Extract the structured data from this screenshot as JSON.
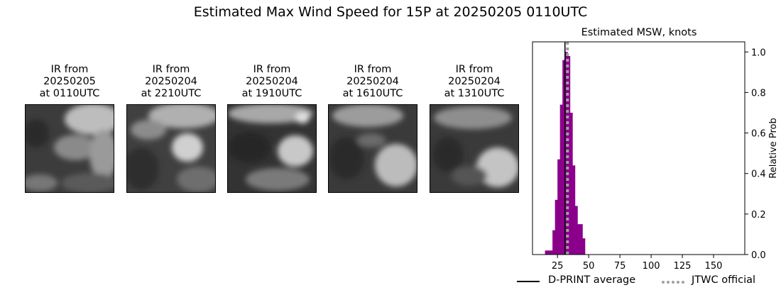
{
  "suptitle": "Estimated Max Wind Speed for 15P at 20250205 0110UTC",
  "panels": [
    {
      "line1": "IR from",
      "line2": "20250205",
      "line3": "at 0110UTC"
    },
    {
      "line1": "IR from",
      "line2": "20250204",
      "line3": "at 2210UTC"
    },
    {
      "line1": "IR from",
      "line2": "20250204",
      "line3": "at 1910UTC"
    },
    {
      "line1": "IR from",
      "line2": "20250204",
      "line3": "at 1610UTC"
    },
    {
      "line1": "IR from",
      "line2": "20250204",
      "line3": "at 1310UTC"
    }
  ],
  "colors": {
    "bars": "#8b008b",
    "dprint": "#000000",
    "jtwc": "#a0a0a0"
  },
  "chart_data": {
    "type": "bar",
    "title": "Estimated MSW, knots",
    "xlabel": "",
    "ylabel": "Relative Prob",
    "xlim": [
      5,
      175
    ],
    "ylim": [
      0,
      1.05
    ],
    "xticks": [
      25,
      50,
      75,
      100,
      125,
      150
    ],
    "yticks": [
      0.0,
      0.2,
      0.4,
      0.6,
      0.8,
      1.0
    ],
    "bin_width": 2,
    "bin_centers": [
      16,
      18,
      20,
      22,
      24,
      26,
      28,
      30,
      32,
      34,
      36,
      38,
      40,
      42,
      44,
      46
    ],
    "values": [
      0.02,
      0.02,
      0.02,
      0.12,
      0.27,
      0.47,
      0.74,
      0.96,
      1.0,
      0.98,
      0.7,
      0.44,
      0.24,
      0.15,
      0.15,
      0.08
    ],
    "dprint_average": 31,
    "jtwc_official": 33,
    "legend": [
      {
        "label": "D-PRINT average",
        "style": "solid"
      },
      {
        "label": "JTWC official",
        "style": "dotted"
      }
    ],
    "legend_position": "bottom-right"
  }
}
